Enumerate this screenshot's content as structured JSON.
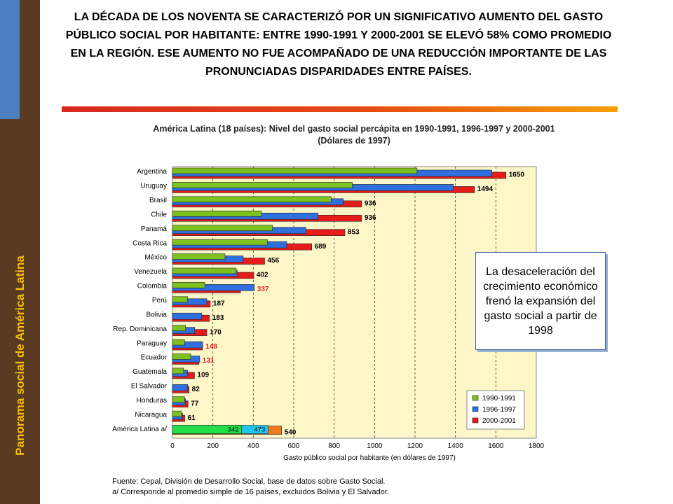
{
  "sidebar": {
    "label": "Panorama social de América Latina"
  },
  "slide": {
    "title": "LA DÉCADA DE LOS NOVENTA SE CARACTERIZÓ POR UN SIGNIFICATIVO AUMENTO DEL GASTO PÚBLICO SOCIAL POR HABITANTE: ENTRE 1990-1991 Y 2000-2001 SE ELEVÓ 58% COMO PROMEDIO EN LA REGIÓN. ESE AUMENTO NO FUE ACOMPAÑADO DE UNA REDUCCIÓN IMPORTANTE DE LAS PRONUNCIADAS DISPARIDADES ENTRE PAÍSES."
  },
  "callout": {
    "text": "La desaceleración del crecimiento económico frenó la expansión del gasto social a partir de 1998"
  },
  "source": {
    "line1": "Fuente: Cepal, División de Desarrollo Social, base de datos sobre Gasto Social.",
    "line2": "a/ Corresponde al promedio simple de 16 países, excluidos Bolivia y El Salvador."
  },
  "colors": {
    "sidebar": "#5b3a22",
    "sidebar_text": "#f5c000",
    "plot_bg": "#fdf6c8",
    "s1990": "#7dc21e",
    "s1996": "#2f6fe0",
    "s2000": "#e81b1b",
    "avg1990": "#22e04a",
    "avg1996": "#21c6ee",
    "avg2000": "#f07a22"
  },
  "chart_data": {
    "type": "bar",
    "orientation": "horizontal",
    "title": "América Latina (18 países): Nivel del gasto social percápita en 1990-1991, 1996-1997 y 2000-2001",
    "subtitle": "(Dólares de 1997)",
    "xlabel": "Gasto público social por habitante (en dólares de 1997)",
    "ylabel": "",
    "xlim": [
      0,
      1800
    ],
    "xticks": [
      0,
      200,
      400,
      600,
      800,
      1000,
      1200,
      1400,
      1600,
      1800
    ],
    "grid": "vertical-dashed",
    "legend_position": "bottom-right",
    "categories": [
      "Argentina",
      "Uruguay",
      "Brasil",
      "Chile",
      "Panamá",
      "Costa Rica",
      "México",
      "Venezuela",
      "Colombia",
      "Perú",
      "Bolivia",
      "Rep. Dominicana",
      "Paraguay",
      "Ecuador",
      "Guatemala",
      "El Salvador",
      "Honduras",
      "Nicaragua",
      "América Latina a/"
    ],
    "series": [
      {
        "name": "1990-1991",
        "values": [
          1210,
          890,
          785,
          440,
          495,
          470,
          260,
          315,
          160,
          75,
          null,
          65,
          60,
          90,
          55,
          null,
          60,
          45,
          342
        ]
      },
      {
        "name": "1996-1997",
        "values": [
          1580,
          1390,
          845,
          720,
          660,
          565,
          350,
          320,
          405,
          170,
          145,
          110,
          150,
          135,
          75,
          75,
          65,
          50,
          473
        ]
      },
      {
        "name": "2000-2001",
        "values": [
          1650,
          1494,
          936,
          936,
          853,
          689,
          456,
          402,
          337,
          187,
          183,
          170,
          148,
          131,
          109,
          82,
          77,
          61,
          540
        ]
      }
    ],
    "value_labels": [
      "1650",
      "1494",
      "936",
      "936",
      "853",
      "689",
      "456",
      "402",
      "337",
      "187",
      "183",
      "170",
      "148",
      "131",
      "109",
      "82",
      "77",
      "61",
      "540"
    ],
    "red_value_labels": [
      "337",
      "148",
      "131"
    ],
    "average_inner_labels": [
      "342",
      "473"
    ]
  }
}
